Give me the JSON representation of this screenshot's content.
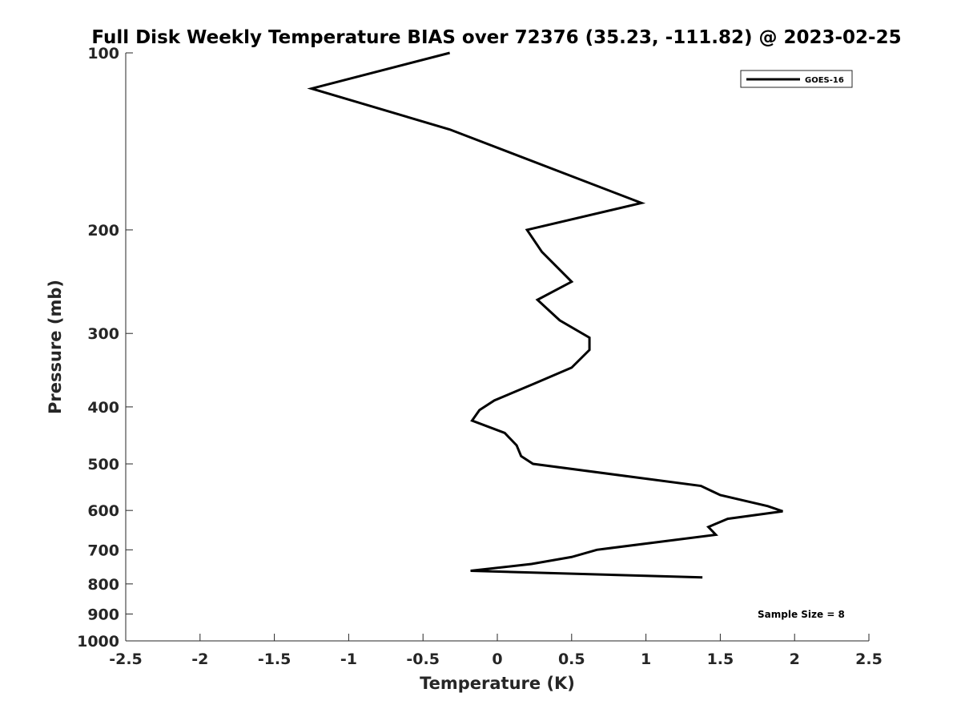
{
  "chart_data": {
    "type": "line",
    "title": "Full Disk Weekly Temperature BIAS over 72376 (35.23, -111.82) @ 2023-02-25",
    "xlabel": "Temperature (K)",
    "ylabel": "Pressure (mb)",
    "xlim": [
      -2.5,
      2.5
    ],
    "ylim": [
      100,
      1000
    ],
    "y_scale": "log",
    "y_reversed": true,
    "grid": false,
    "legend_position": "top-right",
    "x_ticks": [
      -2.5,
      -2,
      -1.5,
      -1,
      -0.5,
      0,
      0.5,
      1,
      1.5,
      2,
      2.5
    ],
    "x_tick_labels": [
      "-2.5",
      "-2",
      "-1.5",
      "-1",
      "-0.5",
      "0",
      "0.5",
      "1",
      "1.5",
      "2",
      "2.5"
    ],
    "y_ticks": [
      100,
      200,
      300,
      400,
      500,
      600,
      700,
      800,
      900,
      1000
    ],
    "y_tick_labels": [
      "100",
      "200",
      "300",
      "400",
      "500",
      "600",
      "700",
      "800",
      "900",
      "1000"
    ],
    "series": [
      {
        "name": "GOES-16",
        "color": "#000000",
        "points": [
          {
            "x": -0.32,
            "y": 100
          },
          {
            "x": -1.25,
            "y": 115
          },
          {
            "x": -0.32,
            "y": 135
          },
          {
            "x": 0.97,
            "y": 180
          },
          {
            "x": 0.2,
            "y": 200
          },
          {
            "x": 0.3,
            "y": 218
          },
          {
            "x": 0.5,
            "y": 245
          },
          {
            "x": 0.27,
            "y": 263
          },
          {
            "x": 0.42,
            "y": 285
          },
          {
            "x": 0.62,
            "y": 305
          },
          {
            "x": 0.62,
            "y": 320
          },
          {
            "x": 0.5,
            "y": 343
          },
          {
            "x": 0.25,
            "y": 365
          },
          {
            "x": -0.02,
            "y": 390
          },
          {
            "x": -0.12,
            "y": 405
          },
          {
            "x": -0.17,
            "y": 422
          },
          {
            "x": 0.05,
            "y": 443
          },
          {
            "x": 0.13,
            "y": 465
          },
          {
            "x": 0.16,
            "y": 485
          },
          {
            "x": 0.24,
            "y": 500
          },
          {
            "x": 1.37,
            "y": 545
          },
          {
            "x": 1.5,
            "y": 565
          },
          {
            "x": 1.82,
            "y": 590
          },
          {
            "x": 1.92,
            "y": 602
          },
          {
            "x": 1.55,
            "y": 620
          },
          {
            "x": 1.42,
            "y": 640
          },
          {
            "x": 1.47,
            "y": 660
          },
          {
            "x": 0.67,
            "y": 700
          },
          {
            "x": 0.5,
            "y": 720
          },
          {
            "x": 0.23,
            "y": 740
          },
          {
            "x": -0.18,
            "y": 760
          },
          {
            "x": 1.38,
            "y": 780
          }
        ]
      }
    ],
    "annotations": [
      {
        "text": "Sample Size = 8",
        "position": "bottom-right"
      }
    ]
  }
}
